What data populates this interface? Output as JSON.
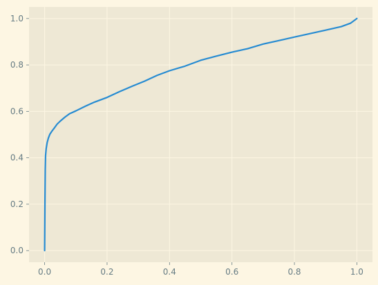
{
  "chart_data": {
    "type": "line",
    "title": "",
    "xlabel": "",
    "ylabel": "",
    "xlim": [
      -0.05,
      1.05
    ],
    "ylim": [
      -0.05,
      1.05
    ],
    "grid": true,
    "legend": "none",
    "colors": {
      "figure_background": "#FDF6E3",
      "axes_background": "#EEE8D5",
      "grid": "#FDF6E3",
      "tick_label": "#657B83",
      "line": "#268BD2"
    },
    "x_ticks": [
      {
        "value": 0.0,
        "label": "0.0"
      },
      {
        "value": 0.2,
        "label": "0.2"
      },
      {
        "value": 0.4,
        "label": "0.4"
      },
      {
        "value": 0.6,
        "label": "0.6"
      },
      {
        "value": 0.8,
        "label": "0.8"
      },
      {
        "value": 1.0,
        "label": "1.0"
      }
    ],
    "y_ticks": [
      {
        "value": 0.0,
        "label": "0.0"
      },
      {
        "value": 0.2,
        "label": "0.2"
      },
      {
        "value": 0.4,
        "label": "0.4"
      },
      {
        "value": 0.6,
        "label": "0.6"
      },
      {
        "value": 0.8,
        "label": "0.8"
      },
      {
        "value": 1.0,
        "label": "1.0"
      }
    ],
    "series": [
      {
        "x": [
          0.0,
          0.001,
          0.002,
          0.003,
          0.005,
          0.008,
          0.012,
          0.017,
          0.024,
          0.032,
          0.04,
          0.05,
          0.065,
          0.08,
          0.1,
          0.13,
          0.16,
          0.2,
          0.24,
          0.28,
          0.32,
          0.36,
          0.4,
          0.45,
          0.5,
          0.55,
          0.6,
          0.65,
          0.7,
          0.75,
          0.8,
          0.85,
          0.9,
          0.95,
          0.98,
          1.0
        ],
        "y": [
          0.0,
          0.2,
          0.35,
          0.41,
          0.44,
          0.465,
          0.485,
          0.502,
          0.516,
          0.53,
          0.545,
          0.558,
          0.575,
          0.59,
          0.602,
          0.622,
          0.64,
          0.66,
          0.685,
          0.708,
          0.73,
          0.755,
          0.775,
          0.795,
          0.82,
          0.838,
          0.855,
          0.87,
          0.89,
          0.905,
          0.92,
          0.935,
          0.95,
          0.965,
          0.98,
          1.0
        ]
      }
    ]
  }
}
